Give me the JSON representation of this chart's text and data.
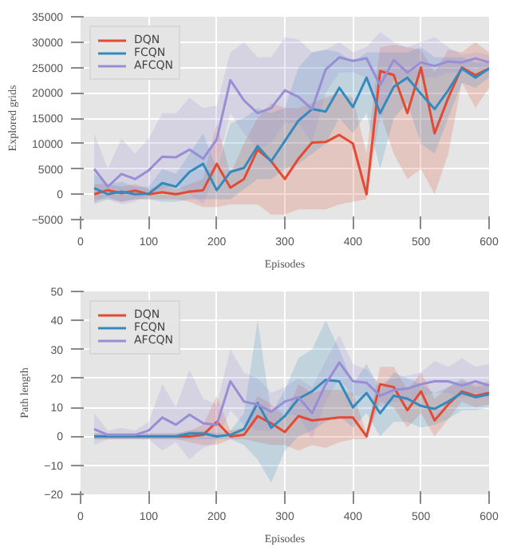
{
  "chart_data": [
    {
      "type": "line",
      "xlabel": "Episodes",
      "ylabel": "Explored grids",
      "legend": "top left",
      "grid": true,
      "xlim": [
        0,
        600
      ],
      "ylim": [
        -5000,
        35000
      ],
      "xticks": [
        0,
        100,
        200,
        300,
        400,
        500,
        600
      ],
      "yticks": [
        {
          "value": -5000,
          "label": "−5000"
        },
        0,
        5000,
        10000,
        15000,
        20000,
        25000,
        30000,
        35000
      ],
      "x": [
        20,
        40,
        60,
        80,
        100,
        120,
        140,
        160,
        180,
        200,
        220,
        240,
        260,
        280,
        300,
        320,
        340,
        360,
        380,
        400,
        420,
        440,
        460,
        480,
        500,
        520,
        540,
        560,
        580,
        600
      ],
      "series": [
        {
          "name": "DQN",
          "color": "#e24a33",
          "values": [
            0,
            800,
            200,
            700,
            0,
            400,
            0,
            500,
            800,
            6000,
            1300,
            3000,
            8800,
            6500,
            3000,
            7000,
            10200,
            10300,
            11700,
            10000,
            0,
            24300,
            23500,
            16000,
            25000,
            12000,
            19000,
            25000,
            23500,
            24800
          ],
          "lower": [
            -1500,
            -500,
            -1500,
            -1000,
            -1000,
            -1000,
            -1000,
            -1500,
            -2500,
            -2500,
            -2000,
            -2000,
            -2000,
            -4000,
            -4000,
            -3000,
            -3000,
            -3000,
            -2000,
            -1500,
            -1000,
            16000,
            8000,
            3000,
            5000,
            0,
            8000,
            22000,
            17000,
            21000
          ],
          "upper": [
            2000,
            2000,
            1500,
            2000,
            1000,
            2000,
            1000,
            2000,
            3000,
            14000,
            4000,
            10000,
            15000,
            18000,
            17000,
            17000,
            18000,
            19000,
            20000,
            19000,
            8000,
            29000,
            29500,
            29000,
            28500,
            24000,
            28500,
            28000,
            30000,
            28000
          ]
        },
        {
          "name": "FCQN",
          "color": "#348abd",
          "values": [
            1200,
            0,
            500,
            0,
            100,
            2200,
            1500,
            4400,
            6000,
            800,
            4400,
            5200,
            9500,
            6500,
            10500,
            14500,
            16800,
            16300,
            21000,
            17200,
            23000,
            16000,
            21200,
            23000,
            19800,
            16800,
            20500,
            24800,
            23000,
            24800
          ],
          "lower": [
            -2000,
            -1000,
            -1500,
            -1000,
            -1000,
            -1500,
            -1500,
            -1000,
            -1000,
            -1000,
            -1000,
            1000,
            3000,
            3000,
            5000,
            6000,
            8000,
            10000,
            15000,
            12000,
            16000,
            5000,
            15000,
            18000,
            10000,
            8000,
            15000,
            22000,
            21000,
            23000
          ],
          "upper": [
            4000,
            2000,
            2500,
            1500,
            1500,
            5000,
            4000,
            8000,
            12000,
            5000,
            14000,
            15000,
            17000,
            16000,
            17000,
            25000,
            28000,
            28500,
            28000,
            26000,
            28000,
            28000,
            28000,
            28000,
            29000,
            27000,
            27000,
            27000,
            26000,
            26000
          ]
        },
        {
          "name": "AFCQN",
          "color": "#988ed5",
          "values": [
            5000,
            1500,
            4000,
            3000,
            4700,
            7400,
            7300,
            8800,
            7000,
            10800,
            22500,
            18500,
            16000,
            17000,
            20500,
            19200,
            16800,
            24600,
            27000,
            26300,
            26800,
            21500,
            26500,
            24000,
            26000,
            25300,
            26200,
            26000,
            26800,
            26000
          ],
          "lower": [
            -1000,
            -1000,
            -2000,
            -1500,
            0,
            1000,
            2000,
            0,
            -2000,
            5000,
            16000,
            12000,
            9000,
            10000,
            14000,
            14000,
            10000,
            20000,
            24000,
            24000,
            23000,
            14000,
            23000,
            22000,
            23000,
            23000,
            24000,
            24000,
            25000,
            24000
          ],
          "upper": [
            12000,
            5000,
            11000,
            8000,
            11000,
            16000,
            16000,
            19000,
            17000,
            17500,
            28000,
            30000,
            27000,
            27000,
            31000,
            30500,
            28000,
            28500,
            30000,
            28000,
            29000,
            32000,
            30000,
            29000,
            30000,
            31000,
            29000,
            27500,
            28000,
            27500
          ]
        }
      ]
    },
    {
      "type": "line",
      "xlabel": "Episodes",
      "ylabel": "Path length",
      "legend": "top left",
      "grid": true,
      "xlim": [
        0,
        600
      ],
      "ylim": [
        -20,
        50
      ],
      "xticks": [
        0,
        100,
        200,
        300,
        400,
        500,
        600
      ],
      "yticks": [
        {
          "value": -20,
          "label": "−20"
        },
        {
          "value": -10,
          "label": "−10"
        },
        0,
        10,
        20,
        30,
        40,
        50
      ],
      "x": [
        20,
        40,
        60,
        80,
        100,
        120,
        140,
        160,
        180,
        200,
        220,
        240,
        260,
        280,
        300,
        320,
        340,
        360,
        380,
        400,
        420,
        440,
        460,
        480,
        500,
        520,
        540,
        560,
        580,
        600
      ],
      "series": [
        {
          "name": "DQN",
          "color": "#e24a33",
          "values": [
            null,
            null,
            null,
            null,
            null,
            0,
            0,
            0,
            0.5,
            5,
            0,
            0.5,
            7,
            4.5,
            1.5,
            7,
            5.5,
            6,
            6.5,
            6.5,
            0,
            18,
            17,
            9,
            15.5,
            5.5,
            11,
            15.5,
            14,
            15
          ],
          "lower": [
            -1,
            -1,
            -1,
            -1,
            -1,
            -1,
            -1,
            -2,
            -3,
            -3,
            -1,
            -1,
            -2,
            -3,
            -3,
            -5,
            -3,
            -4,
            -2,
            -1,
            -1,
            12,
            10,
            3,
            8,
            0,
            6,
            12,
            10,
            11
          ],
          "upper": [
            1,
            1,
            1,
            1,
            1,
            1,
            1,
            2,
            4,
            14,
            2,
            3,
            14,
            11,
            7,
            18,
            15,
            16,
            16,
            15,
            1,
            24,
            24,
            16,
            22,
            13,
            17,
            19,
            18,
            19
          ]
        },
        {
          "name": "FCQN",
          "color": "#348abd",
          "values": [
            0,
            0,
            0,
            0,
            0,
            0,
            0,
            1,
            1,
            0,
            0.5,
            2.5,
            11.5,
            3,
            7,
            13,
            15.5,
            19.5,
            19,
            10,
            15,
            8,
            14,
            13,
            10.5,
            9.5,
            12,
            15,
            13.5,
            14.5
          ],
          "lower": [
            -1,
            -1,
            -1,
            -1,
            -1,
            -1,
            -1,
            -1,
            -1,
            -1,
            -1,
            -3,
            -8,
            -16,
            -5,
            0,
            2,
            5,
            7,
            3,
            8,
            0,
            5,
            5,
            3,
            4,
            6,
            9,
            9,
            10
          ],
          "upper": [
            1,
            1,
            1,
            1,
            1,
            1,
            1,
            2,
            2,
            1,
            2,
            8,
            40,
            8,
            16,
            27,
            30,
            40,
            30,
            18,
            25,
            16,
            22,
            20,
            18,
            15,
            17,
            20,
            17,
            18
          ]
        },
        {
          "name": "AFCQN",
          "color": "#988ed5",
          "values": [
            2.5,
            0.5,
            0.5,
            0.5,
            2,
            6.5,
            4,
            7.5,
            4.5,
            4,
            19,
            12,
            11,
            8.5,
            12,
            13.5,
            8,
            18,
            25.5,
            19,
            18.5,
            14,
            16,
            16.5,
            18,
            19,
            19,
            17.5,
            19,
            17.5
          ],
          "lower": [
            -3,
            -1,
            -1,
            -1,
            -1,
            -5,
            -2,
            -8,
            -4,
            -2,
            9,
            4,
            2,
            2,
            8,
            7,
            -1,
            12,
            20,
            14,
            14,
            10,
            12,
            12,
            14,
            15,
            15,
            13,
            15,
            13
          ],
          "upper": [
            8,
            2,
            3,
            2,
            5,
            18,
            10,
            23,
            13,
            11,
            30,
            22,
            20,
            15,
            17,
            20,
            17,
            26,
            35,
            25,
            23,
            18,
            20,
            21,
            22,
            26,
            24,
            27,
            24,
            25
          ]
        }
      ]
    }
  ]
}
